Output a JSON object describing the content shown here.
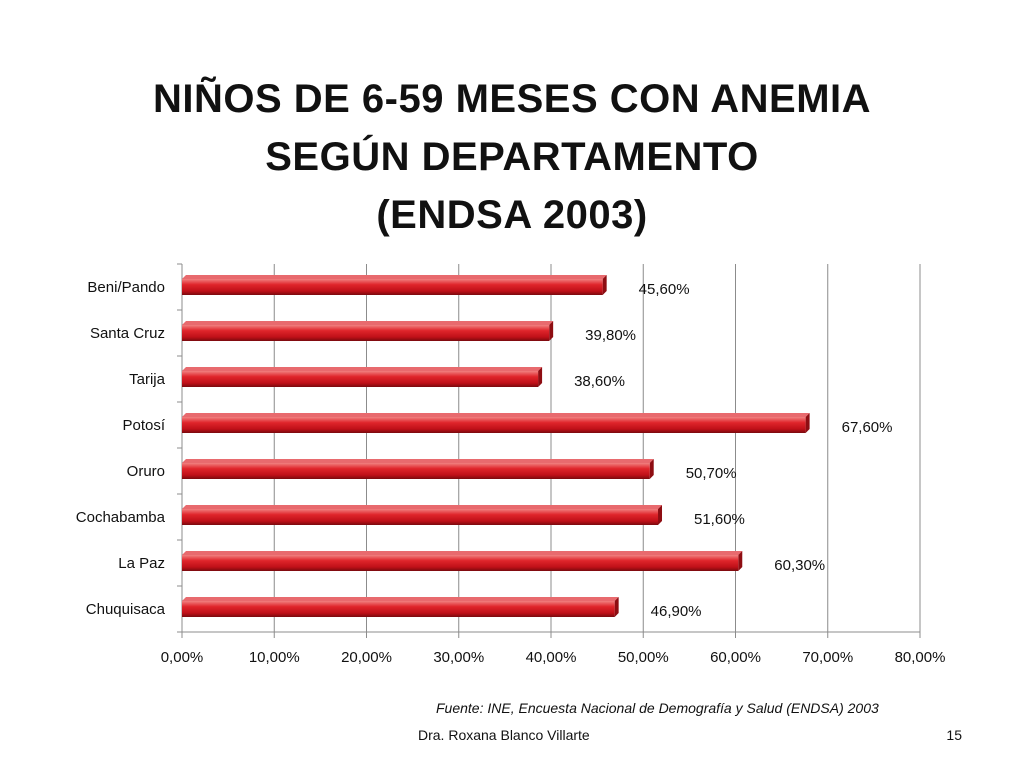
{
  "slide": {
    "title_lines": [
      "NIÑOS DE 6-59 MESES CON ANEMIA",
      "SEGÚN DEPARTAMENTO",
      "(ENDSA 2003)"
    ],
    "source": "Fuente: INE, Encuesta Nacional de Demografía y Salud (ENDSA) 2003",
    "author": "Dra. Roxana Blanco Villarte",
    "page_number": "15"
  },
  "chart_data": {
    "type": "bar",
    "orientation": "horizontal",
    "categories": [
      "Beni/Pando",
      "Santa Cruz",
      "Tarija",
      "Potosí",
      "Oruro",
      "Cochabamba",
      "La Paz",
      "Chuquisaca"
    ],
    "values": [
      45.6,
      39.8,
      38.6,
      67.6,
      50.7,
      51.6,
      60.3,
      46.9
    ],
    "data_labels": [
      "45,60%",
      "39,80%",
      "38,60%",
      "67,60%",
      "50,70%",
      "51,60%",
      "60,30%",
      "46,90%"
    ],
    "xlim": [
      0,
      80
    ],
    "x_ticks": [
      "0,00%",
      "10,00%",
      "20,00%",
      "30,00%",
      "40,00%",
      "50,00%",
      "60,00%",
      "70,00%",
      "80,00%"
    ],
    "bar_color": "#d01a20",
    "grid": "vertical"
  }
}
